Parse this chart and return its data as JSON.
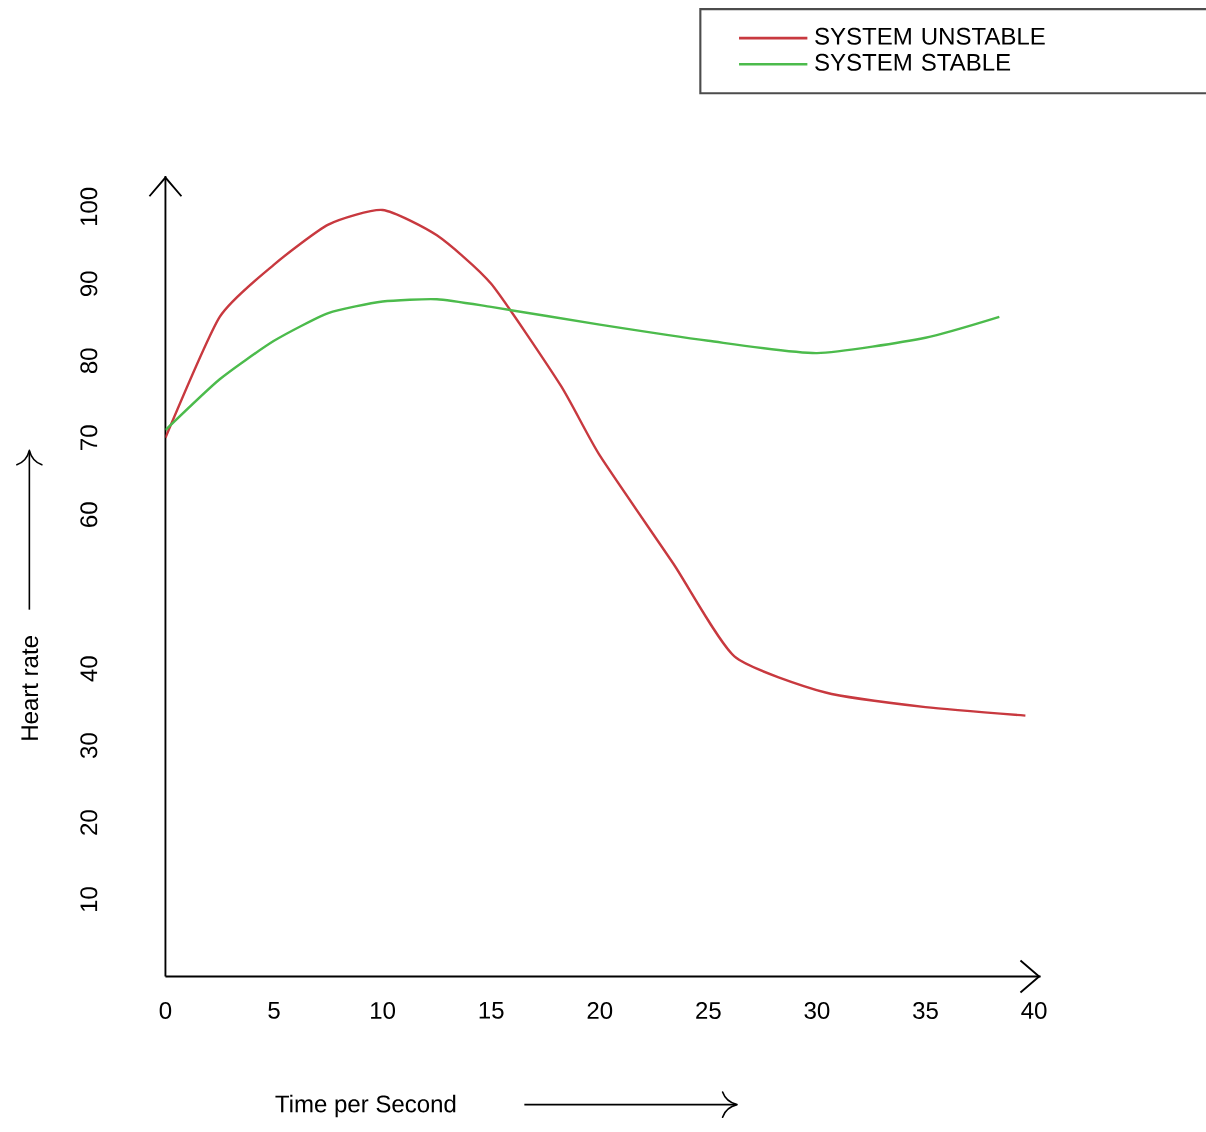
{
  "chart_data": {
    "type": "line",
    "xlabel": "Time per Second",
    "ylabel": "Heart rate",
    "x": [
      0,
      2.5,
      5,
      7.5,
      10,
      12.5,
      15,
      18.2,
      20,
      23.4,
      26.2,
      30.4,
      35,
      39.6
    ],
    "series": [
      {
        "name": "SYSTEM  UNSTABLE",
        "color": "#c8393f",
        "values": [
          70,
          85.7,
          92.5,
          97.7,
          99.6,
          96.3,
          90,
          76.8,
          67.7,
          53.6,
          41.6,
          36.9,
          35,
          33.9
        ]
      },
      {
        "name": "SYSTEM STABLE",
        "color": "#4cbb4c",
        "x": [
          0,
          2.5,
          5,
          7.5,
          10,
          12.5,
          15,
          20,
          25,
          30,
          35,
          38.4
        ],
        "values": [
          71,
          77.6,
          82.6,
          86.2,
          87.7,
          88,
          87,
          84.7,
          82.6,
          81,
          83,
          85.7
        ]
      }
    ],
    "xlim": [
      0,
      40.3
    ],
    "ylim": [
      0,
      104
    ],
    "xticks": [
      0,
      5,
      10,
      15,
      20,
      25,
      30,
      35,
      40
    ],
    "yticks": [
      10,
      20,
      30,
      40,
      60,
      70,
      80,
      90,
      100
    ],
    "legend": "top right",
    "grid": false
  }
}
